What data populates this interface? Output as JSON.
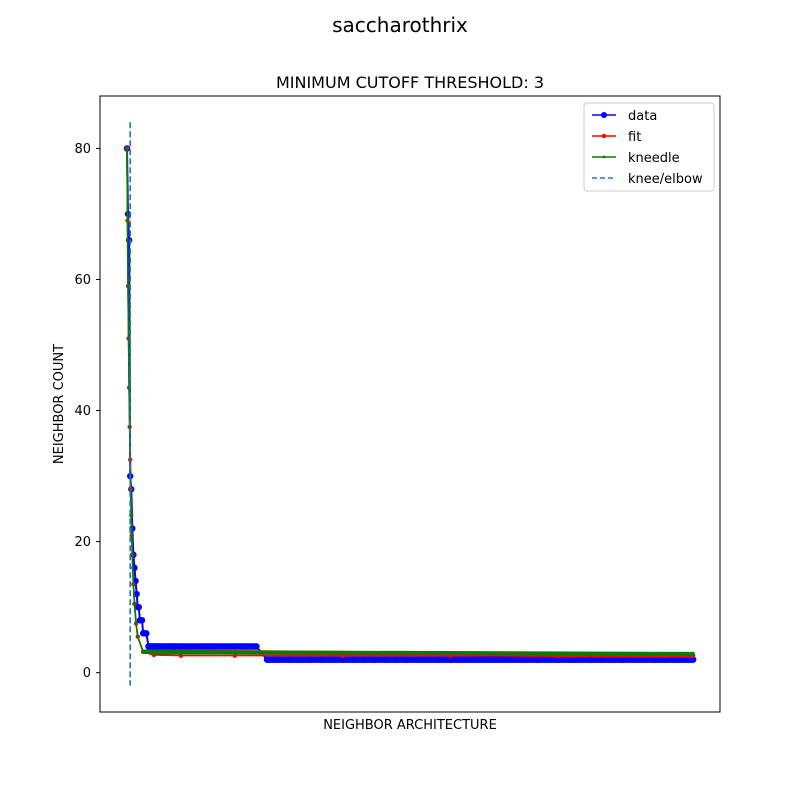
{
  "chart_data": {
    "type": "line",
    "suptitle": "saccharothrix",
    "title": "MINIMUM CUTOFF THRESHOLD: 3",
    "xlabel": "NEIGHBOR ARCHITECTURE",
    "ylabel": "NEIGHBOR COUNT",
    "xlim": [
      -5,
      110
    ],
    "ylim": [
      -6,
      88
    ],
    "yticks": [
      0,
      20,
      40,
      60,
      80
    ],
    "xticks_visible": false,
    "grid": false,
    "legend_position": "top-right",
    "legend": [
      "data",
      "fit",
      "kneedle",
      "knee/elbow"
    ],
    "colors": {
      "data": "#0000ff",
      "fit": "#ff0000",
      "kneedle": "#008000",
      "knee_elbow": "#1f77b4"
    },
    "series": [
      {
        "name": "data",
        "x": [
          0,
          0.2,
          0.4,
          0.6,
          0.8,
          1,
          1.2,
          1.4,
          1.6,
          1.8,
          2,
          2.2,
          2.4,
          2.6,
          2.8,
          3,
          3.2,
          3.4,
          3.6,
          4,
          4.4,
          4.8,
          5.2,
          6,
          7,
          8,
          9,
          10,
          12,
          14,
          16,
          18,
          20,
          22,
          24,
          26,
          28,
          30,
          32,
          34,
          36,
          38,
          40,
          42,
          44,
          46,
          48,
          50,
          52,
          54,
          56,
          58,
          60,
          62,
          64,
          66,
          68,
          70,
          72,
          74,
          76,
          78,
          80,
          82,
          84,
          86,
          88,
          90,
          92,
          94,
          96,
          98,
          100,
          102,
          104,
          105
        ],
        "y": [
          80,
          70,
          66,
          30,
          28,
          22,
          18,
          16,
          14,
          12,
          10,
          10,
          8,
          8,
          8,
          6,
          6,
          6,
          6,
          4,
          4,
          4,
          4,
          4,
          4,
          4,
          4,
          4,
          4,
          4,
          4,
          4,
          4,
          4,
          4,
          2,
          2,
          2,
          2,
          2,
          2,
          2,
          2,
          2,
          2,
          2,
          2,
          2,
          2,
          2,
          2,
          2,
          2,
          2,
          2,
          2,
          2,
          2,
          2,
          2,
          2,
          2,
          2,
          2,
          2,
          2,
          2,
          2,
          2,
          2,
          2,
          2,
          2,
          2,
          2,
          2
        ]
      },
      {
        "name": "fit",
        "x": [
          0,
          0.1,
          0.2,
          0.3,
          0.4,
          0.5,
          0.6,
          0.7,
          0.8,
          0.9,
          1.0,
          1.2,
          1.4,
          1.7,
          2.0,
          3,
          5,
          10,
          20,
          40,
          60,
          80,
          100,
          105
        ],
        "y": [
          80,
          69,
          59,
          51,
          43.5,
          37.5,
          32.5,
          28,
          24,
          21,
          18,
          13.5,
          10.5,
          7.5,
          5.5,
          3.2,
          2.7,
          2.6,
          2.6,
          2.6,
          2.6,
          2.6,
          2.6,
          2.6
        ]
      },
      {
        "name": "kneedle",
        "x": [
          0,
          0.1,
          0.2,
          0.3,
          0.4,
          0.5,
          0.6,
          0.7,
          0.8,
          0.9,
          1.0,
          1.2,
          1.4,
          1.7,
          2.0,
          3,
          5,
          10,
          20,
          40,
          60,
          80,
          100,
          105
        ],
        "y": [
          80,
          69,
          59,
          51,
          43.5,
          37.5,
          32.5,
          28,
          24,
          21,
          18,
          13.5,
          10.5,
          7.5,
          5.5,
          3.2,
          2.9,
          2.9,
          2.9,
          2.9,
          2.9,
          2.9,
          2.9,
          2.9
        ]
      }
    ],
    "knee_elbow": {
      "x": 0.6,
      "y_range": [
        -2,
        84
      ]
    }
  }
}
